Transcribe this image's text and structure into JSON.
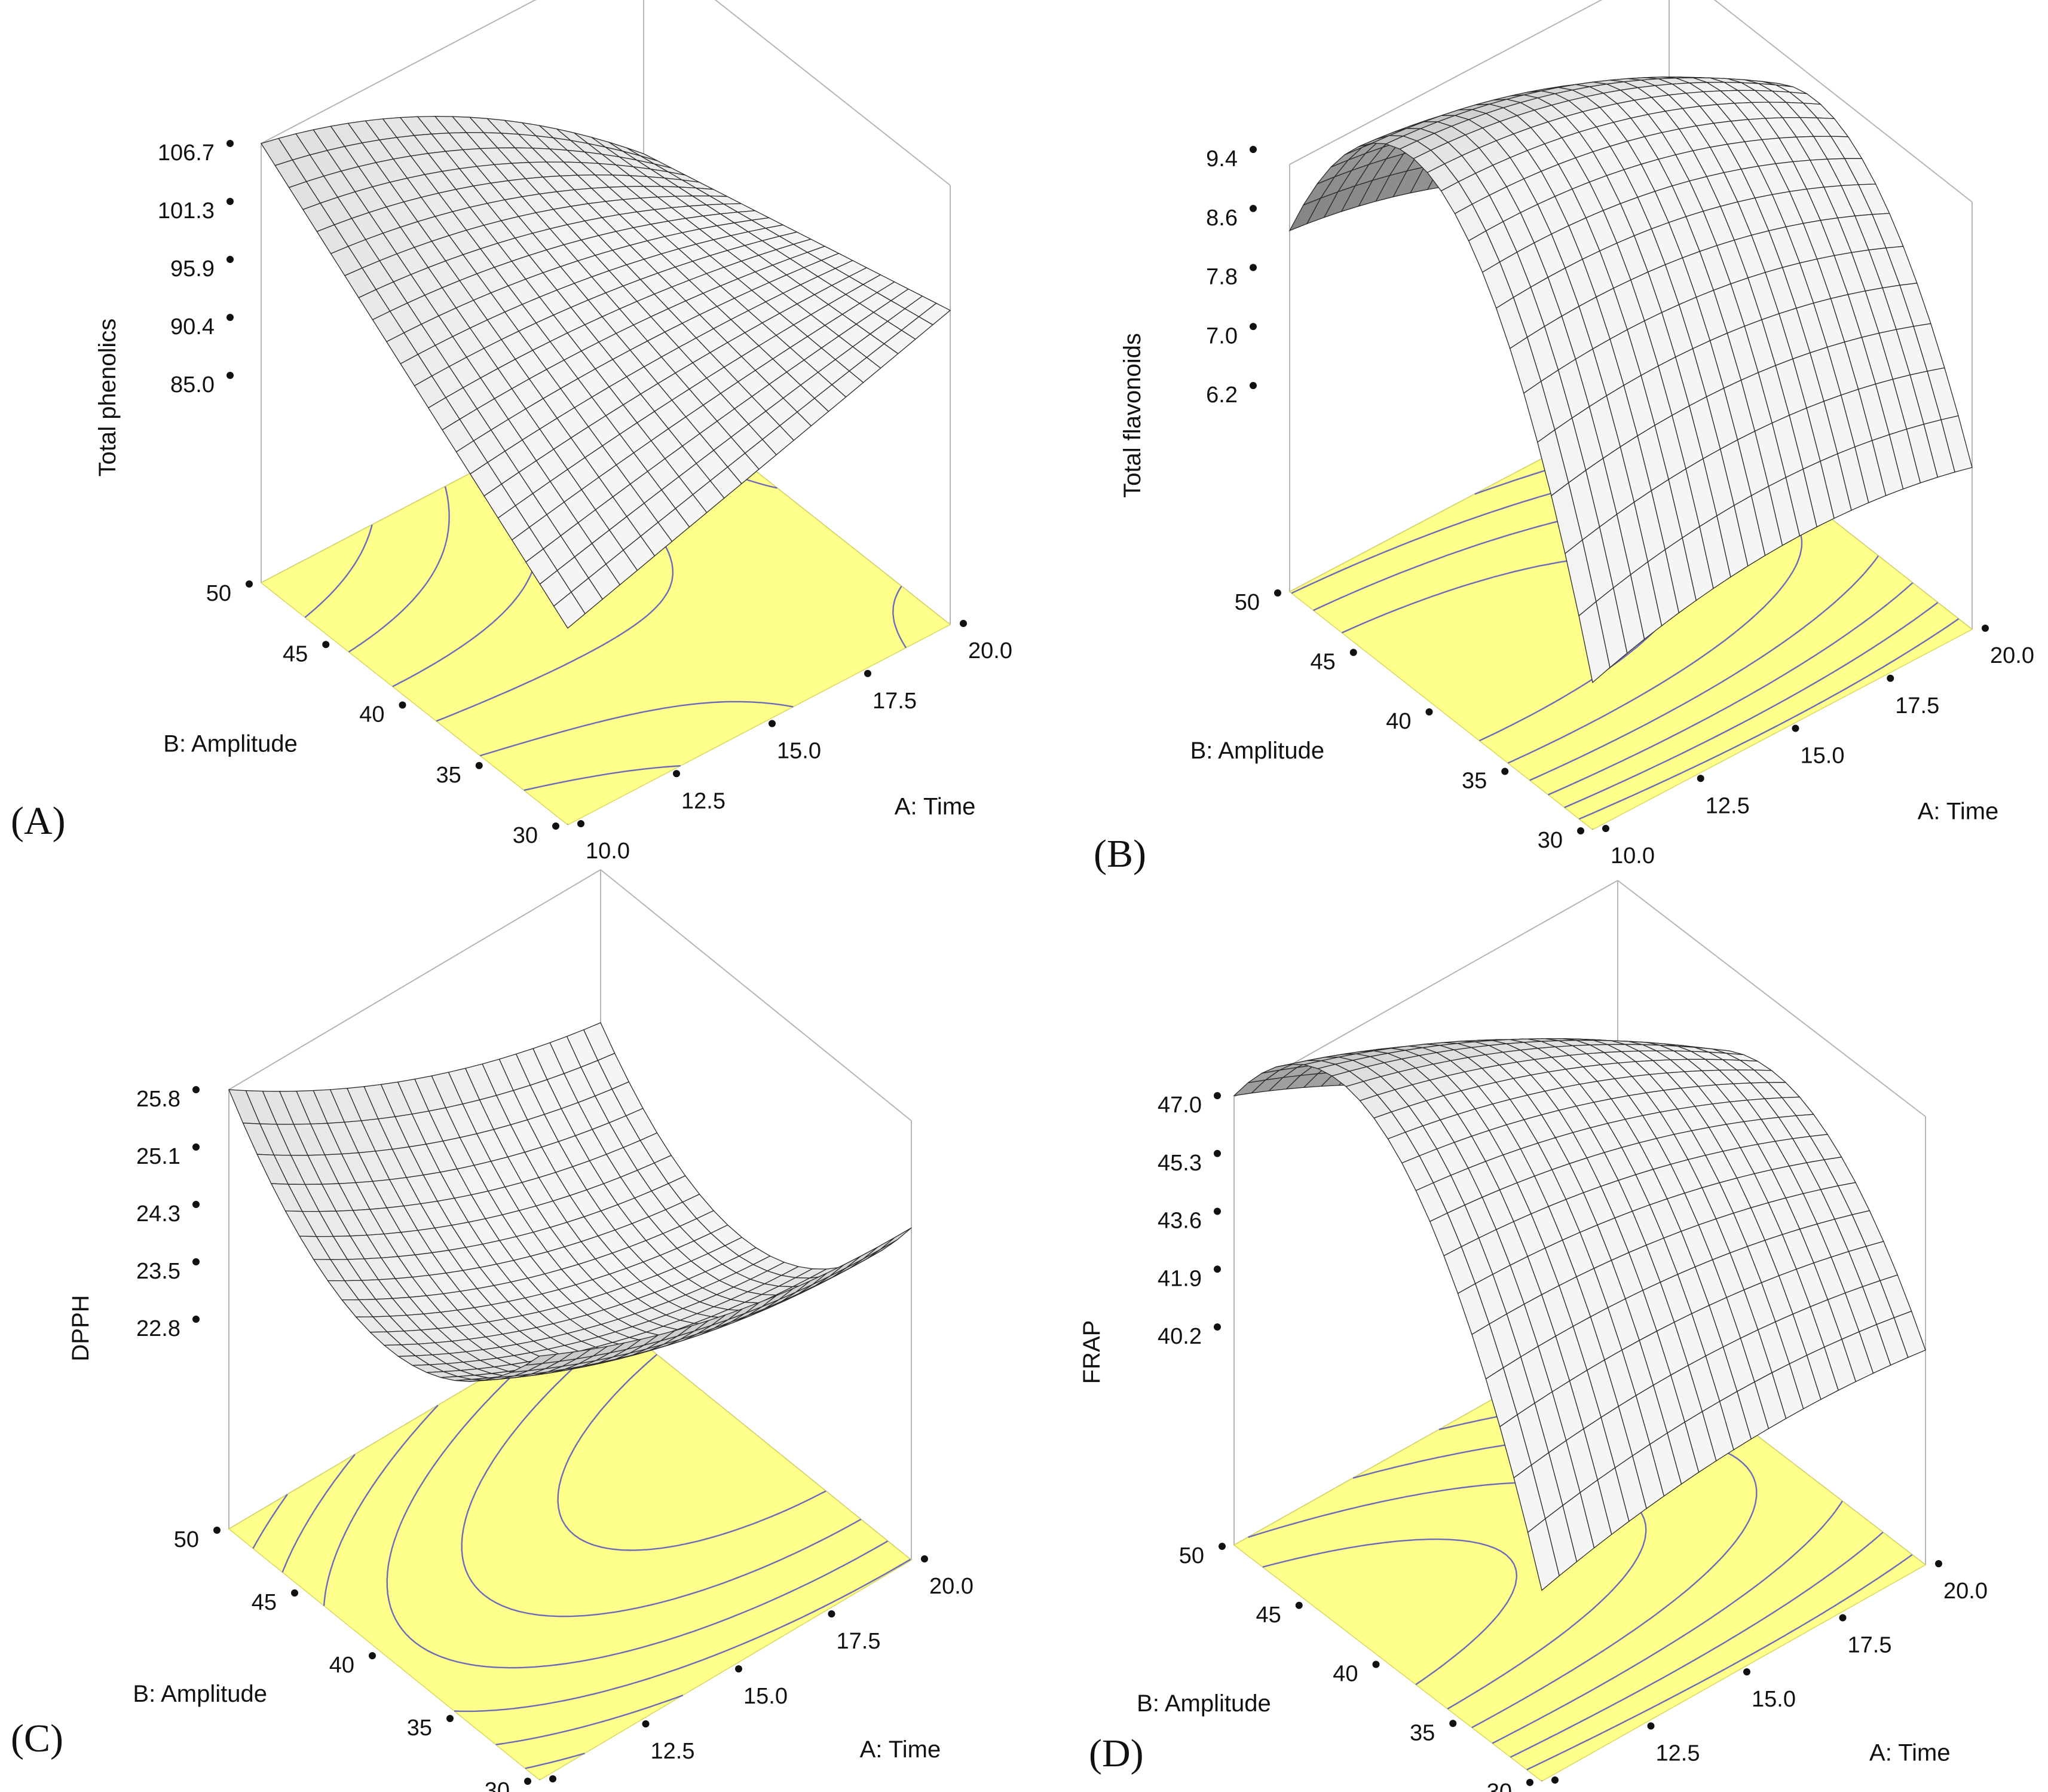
{
  "colors": {
    "floor": "#ffff8c",
    "contour": "#6a6ab8",
    "mesh_line": "#2a2a2a",
    "box_line": "#b5b5b5"
  },
  "chart_data": [
    {
      "type": "surface",
      "panel_label": "(A)",
      "zlabel": "Total phenolics",
      "xlabel": "A: Time",
      "ylabel": "B: Amplitude",
      "x_ticks": [
        "10.0",
        "12.5",
        "15.0",
        "17.5",
        "20.0"
      ],
      "y_ticks": [
        "30",
        "35",
        "40",
        "45",
        "50"
      ],
      "z_ticks": [
        "85.0",
        "90.4",
        "95.9",
        "101.3",
        "106.7"
      ],
      "xlim": [
        10,
        20
      ],
      "ylim": [
        30,
        50
      ],
      "zlim": [
        85.0,
        106.7
      ],
      "corner_values": {
        "time10_amp30": 84.0,
        "time20_amp30": 95.0,
        "time10_amp50": 106.7,
        "time20_amp50": 87.0
      }
    },
    {
      "type": "surface",
      "panel_label": "(B)",
      "zlabel": "Total flavonoids",
      "xlabel": "A: Time",
      "ylabel": "B: Amplitude",
      "x_ticks": [
        "10.0",
        "12.5",
        "15.0",
        "17.5",
        "20.0"
      ],
      "y_ticks": [
        "30",
        "35",
        "40",
        "45",
        "50"
      ],
      "z_ticks": [
        "6.2",
        "7.0",
        "7.8",
        "8.6",
        "9.4"
      ],
      "xlim": [
        10,
        20
      ],
      "ylim": [
        30,
        50
      ],
      "zlim": [
        6.2,
        9.4
      ],
      "corner_values": {
        "time10_amp30": 5.4,
        "time20_amp30": 5.6,
        "time10_amp50": 8.3,
        "time20_amp50": 6.1
      }
    },
    {
      "type": "surface",
      "panel_label": "(C)",
      "zlabel": "DPPH",
      "xlabel": "A: Time",
      "ylabel": "B: Amplitude",
      "x_ticks": [
        "10.0",
        "12.5",
        "15.0",
        "17.5",
        "20.0"
      ],
      "y_ticks": [
        "30",
        "35",
        "40",
        "45",
        "50"
      ],
      "z_ticks": [
        "22.8",
        "23.5",
        "24.3",
        "25.1",
        "25.8"
      ],
      "xlim": [
        10,
        20
      ],
      "ylim": [
        30,
        50
      ],
      "zlim": [
        22.8,
        25.8
      ],
      "corner_values": {
        "time10_amp30": 25.6,
        "time20_amp30": 24.4,
        "time10_amp50": 25.8,
        "time20_amp50": 23.8
      }
    },
    {
      "type": "surface",
      "panel_label": "(D)",
      "zlabel": "FRAP",
      "xlabel": "A: Time",
      "ylabel": "B: Amplitude",
      "x_ticks": [
        "10.0",
        "12.5",
        "15.0",
        "17.5",
        "20.0"
      ],
      "y_ticks": [
        "30",
        "35",
        "40",
        "45",
        "50"
      ],
      "z_ticks": [
        "40.2",
        "41.9",
        "43.6",
        "45.3",
        "47.0"
      ],
      "xlim": [
        10,
        20
      ],
      "ylim": [
        30,
        50
      ],
      "zlim": [
        40.2,
        47.0
      ],
      "corner_values": {
        "time10_amp30": 39.4,
        "time20_amp30": 40.1,
        "time10_amp50": 47.0,
        "time20_amp50": 40.0
      }
    }
  ]
}
